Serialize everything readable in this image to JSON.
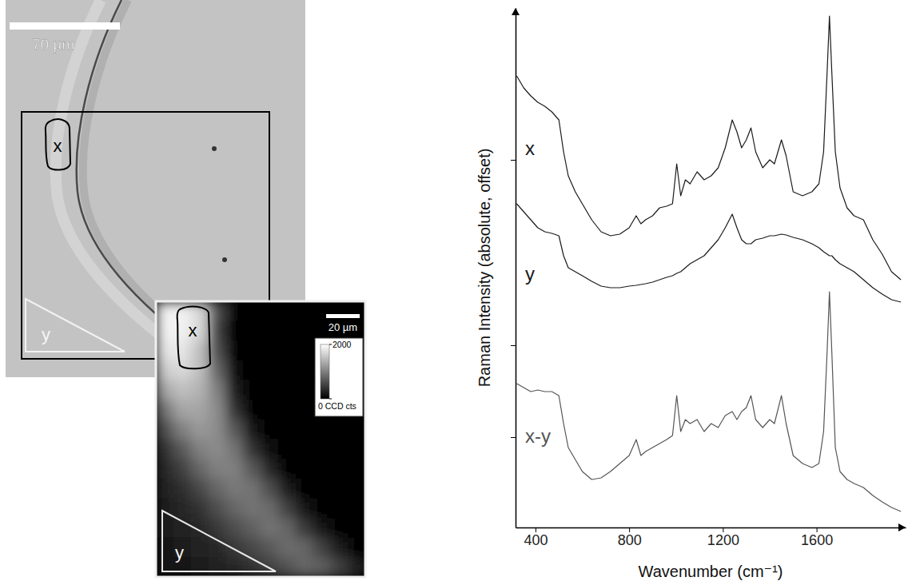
{
  "chart_data": [
    {
      "type": "image",
      "scale_bar": "70 µm",
      "regions": [
        "x",
        "y"
      ]
    },
    {
      "type": "heatmap",
      "scale_bar": "20 µm",
      "regions": [
        "x",
        "y"
      ],
      "cells": [
        [
          1900,
          1900,
          1700,
          600,
          50,
          50,
          50,
          50,
          50,
          50,
          50,
          50
        ],
        [
          1900,
          1900,
          1700,
          500,
          50,
          50,
          50,
          50,
          50,
          50,
          50,
          50
        ],
        [
          1800,
          1800,
          1500,
          600,
          50,
          50,
          50,
          50,
          50,
          50,
          50,
          50
        ],
        [
          1600,
          1700,
          1500,
          800,
          100,
          50,
          50,
          50,
          50,
          50,
          50,
          50
        ],
        [
          1300,
          1500,
          1400,
          1000,
          200,
          50,
          50,
          50,
          50,
          50,
          50,
          50
        ],
        [
          900,
          1300,
          1300,
          1100,
          400,
          50,
          50,
          50,
          50,
          50,
          50,
          50
        ],
        [
          600,
          1000,
          1200,
          1100,
          700,
          150,
          50,
          50,
          50,
          50,
          50,
          50
        ],
        [
          400,
          700,
          1000,
          1100,
          900,
          400,
          100,
          50,
          50,
          50,
          50,
          50
        ],
        [
          300,
          500,
          800,
          1000,
          1000,
          700,
          300,
          50,
          50,
          50,
          50,
          50
        ],
        [
          250,
          350,
          550,
          800,
          950,
          900,
          600,
          200,
          50,
          50,
          50,
          50
        ],
        [
          200,
          300,
          400,
          600,
          800,
          900,
          850,
          500,
          150,
          50,
          50,
          50
        ],
        [
          200,
          250,
          300,
          450,
          600,
          750,
          900,
          800,
          450,
          150,
          50,
          50
        ],
        [
          150,
          200,
          250,
          300,
          450,
          550,
          700,
          850,
          800,
          500,
          200,
          50
        ],
        [
          150,
          150,
          200,
          250,
          300,
          400,
          500,
          650,
          800,
          750,
          500,
          250
        ]
      ],
      "colorbar_range": [
        0,
        2000
      ],
      "colorbar_ticks": [
        2000,
        {
          "value": 0,
          "label": "0 CCD cts"
        }
      ]
    },
    {
      "type": "line",
      "x_label": "Wavenumber (cm⁻¹)",
      "y_label": "Raman Intensity (absolute, offset)",
      "x": [
        320,
        350,
        380,
        410,
        440,
        470,
        500,
        520,
        540,
        570,
        600,
        640,
        680,
        720,
        760,
        800,
        830,
        850,
        870,
        900,
        930,
        960,
        985,
        1003,
        1020,
        1040,
        1060,
        1090,
        1120,
        1150,
        1180,
        1210,
        1240,
        1260,
        1280,
        1300,
        1320,
        1340,
        1370,
        1400,
        1420,
        1450,
        1470,
        1500,
        1540,
        1580,
        1610,
        1630,
        1645,
        1655,
        1665,
        1680,
        1700,
        1730,
        1760,
        1800,
        1840,
        1880,
        1920,
        1960
      ],
      "series": [
        {
          "name": "x",
          "color": "#1a1a1a",
          "values": [
            565,
            550,
            540,
            532,
            527,
            520,
            510,
            470,
            440,
            420,
            405,
            385,
            370,
            365,
            367,
            375,
            390,
            380,
            385,
            390,
            400,
            402,
            405,
            455,
            415,
            435,
            430,
            445,
            435,
            440,
            450,
            475,
            510,
            495,
            475,
            485,
            500,
            470,
            450,
            460,
            455,
            485,
            465,
            420,
            415,
            420,
            430,
            470,
            570,
            640,
            570,
            470,
            425,
            400,
            390,
            385,
            360,
            342,
            320,
            310
          ]
        },
        {
          "name": "y",
          "color": "#1a1a1a",
          "values": [
            405,
            395,
            385,
            375,
            370,
            368,
            365,
            340,
            325,
            320,
            315,
            308,
            302,
            300,
            300,
            302,
            303,
            304,
            305,
            307,
            310,
            313,
            315,
            318,
            320,
            325,
            330,
            335,
            340,
            350,
            360,
            375,
            392,
            375,
            360,
            355,
            355,
            360,
            362,
            365,
            365,
            367,
            366,
            363,
            360,
            355,
            350,
            345,
            342,
            340,
            340,
            335,
            330,
            325,
            320,
            310,
            300,
            292,
            285,
            282
          ]
        },
        {
          "name": "x-y",
          "color": "#555555",
          "values": [
            180,
            175,
            170,
            172,
            170,
            170,
            165,
            130,
            100,
            85,
            70,
            60,
            62,
            70,
            80,
            90,
            110,
            90,
            95,
            100,
            105,
            110,
            115,
            165,
            120,
            135,
            130,
            135,
            120,
            130,
            125,
            140,
            145,
            135,
            145,
            150,
            165,
            135,
            125,
            135,
            130,
            165,
            130,
            90,
            80,
            75,
            80,
            120,
            220,
            295,
            220,
            100,
            70,
            60,
            55,
            50,
            40,
            32,
            25,
            20
          ]
        }
      ],
      "xlim": [
        315,
        1980
      ],
      "xticks": [
        400,
        800,
        1200,
        1600
      ],
      "ylim": [
        0,
        650
      ],
      "yticks": [
        113,
        228,
        460
      ],
      "tick_labels": "x"
    }
  ]
}
